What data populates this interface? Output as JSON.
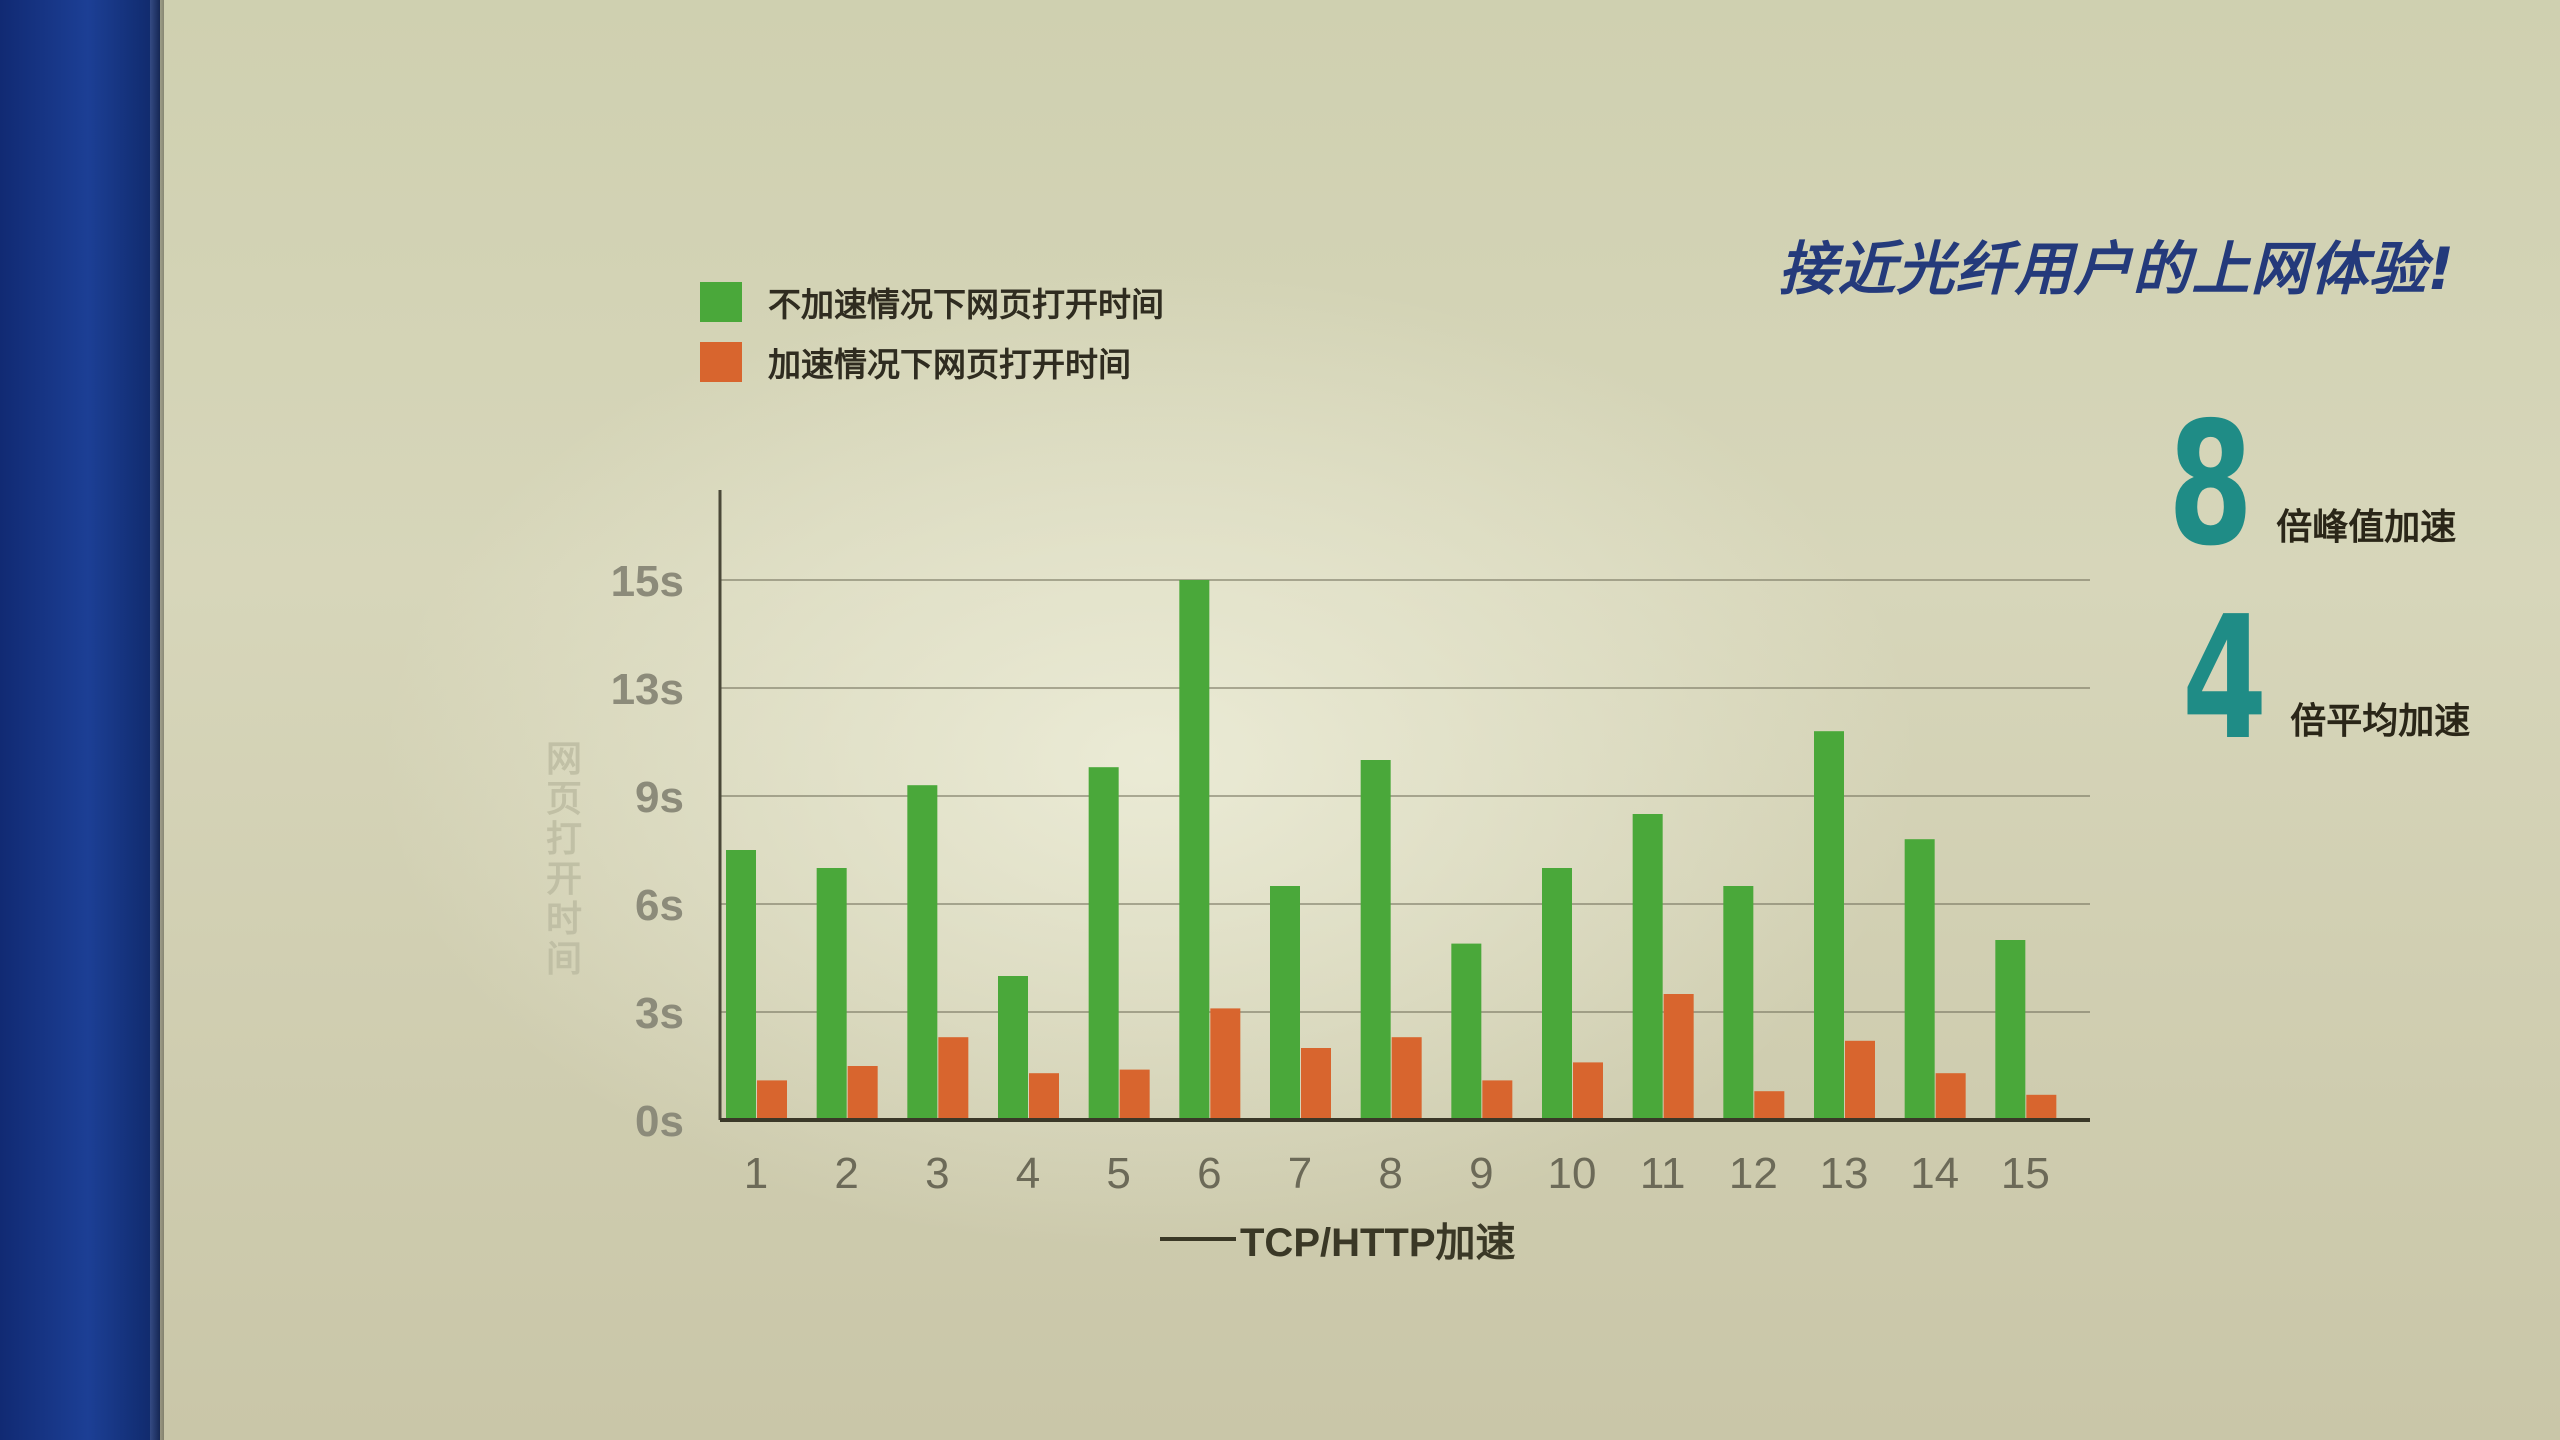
{
  "headline": "接近光纤用户的上网体验!",
  "legend": [
    {
      "label": "不加速情况下网页打开时间",
      "color": "#4aa83a"
    },
    {
      "label": "加速情况下网页打开时间",
      "color": "#d8652e"
    }
  ],
  "stats": [
    {
      "number": "8",
      "text": "倍峰值加速"
    },
    {
      "number": "4",
      "text": "倍平均加速"
    }
  ],
  "colors": {
    "accent": "#1f8c86",
    "headline": "#243a7b"
  },
  "chart_data": {
    "type": "bar",
    "categories": [
      "1",
      "2",
      "3",
      "4",
      "5",
      "6",
      "7",
      "8",
      "9",
      "10",
      "11",
      "12",
      "13",
      "14",
      "15"
    ],
    "series": [
      {
        "name": "不加速情况下网页打开时间",
        "color": "#4aa83a",
        "values": [
          7.5,
          7.0,
          9.3,
          4.0,
          9.8,
          15.0,
          6.5,
          10.0,
          4.9,
          7.0,
          8.5,
          6.5,
          10.8,
          7.8,
          5.0
        ]
      },
      {
        "name": "加速情况下网页打开时间",
        "color": "#d8652e",
        "values": [
          1.1,
          1.5,
          2.3,
          1.3,
          1.4,
          3.1,
          2.0,
          2.3,
          1.1,
          1.6,
          3.5,
          0.8,
          2.2,
          1.3,
          0.7
        ]
      }
    ],
    "yticks": [
      "0s",
      "3s",
      "6s",
      "9s",
      "13s",
      "15s"
    ],
    "ylim": [
      0,
      15
    ],
    "xlabel": "TCP/HTTP加速",
    "ylabel": "网页打开时间",
    "grid": true
  }
}
